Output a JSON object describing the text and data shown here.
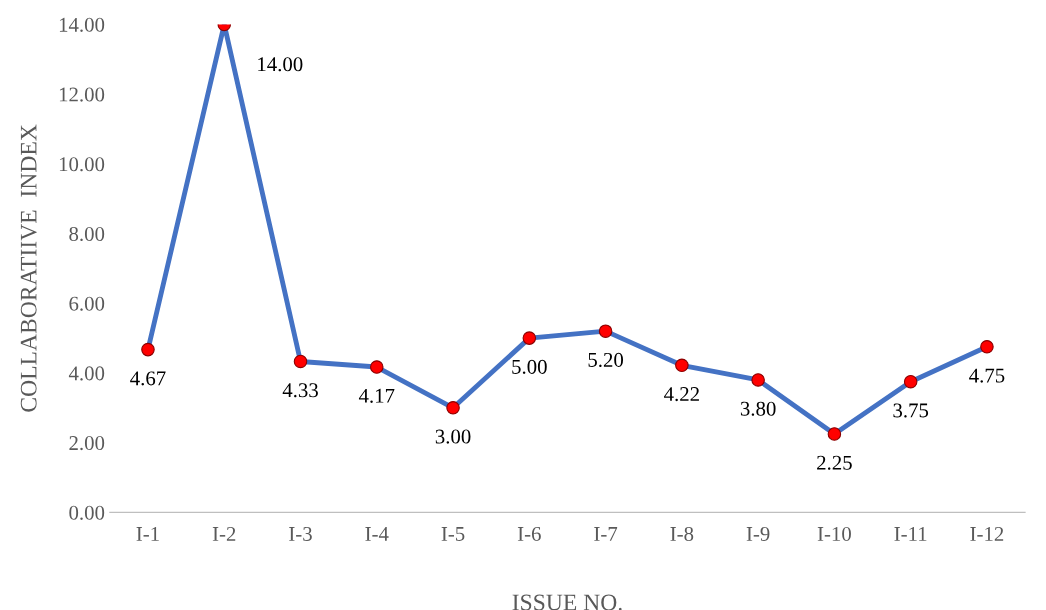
{
  "chart_data": {
    "type": "line",
    "xlabel": "ISSUE NO.",
    "ylabel": "COLLABORATIIVE  INDEX",
    "categories": [
      "I-1",
      "I-2",
      "I-3",
      "I-4",
      "I-5",
      "I-6",
      "I-7",
      "I-8",
      "I-9",
      "I-10",
      "I-11",
      "I-12"
    ],
    "series": [
      {
        "color": "#4472c4",
        "colors": [
          "#ff0000",
          "#ff0000",
          "#ff0000",
          "#ff0000",
          "#ff0000",
          "#ff0000",
          "#ff0000",
          "#ff0000",
          "#ff0000",
          "#ff0000",
          "#ff0000",
          "#ff0000"
        ],
        "values": [
          4.67,
          14.0,
          4.33,
          4.17,
          3.0,
          5.0,
          5.2,
          4.22,
          3.8,
          2.25,
          3.75,
          4.75
        ],
        "value_labels": [
          "4.67",
          "14.00",
          "4.33",
          "4.17",
          "3.00",
          "5.00",
          "5.20",
          "4.22",
          "3.80",
          "2.25",
          "3.75",
          "4.75"
        ]
      }
    ],
    "ylim": [
      0,
      14
    ],
    "yticks": [
      {
        "value": 0,
        "label": "0.00"
      },
      {
        "value": 2,
        "label": "2.00"
      },
      {
        "value": 4,
        "label": "4.00"
      },
      {
        "value": 6,
        "label": "6.00"
      },
      {
        "value": 8,
        "label": "8.00"
      },
      {
        "value": 10,
        "label": "10.00"
      },
      {
        "value": 12,
        "label": "12.00"
      },
      {
        "value": 14,
        "label": "14.00"
      }
    ],
    "marker": "circle",
    "line_style": "solid",
    "grid": false,
    "legend": false
  }
}
